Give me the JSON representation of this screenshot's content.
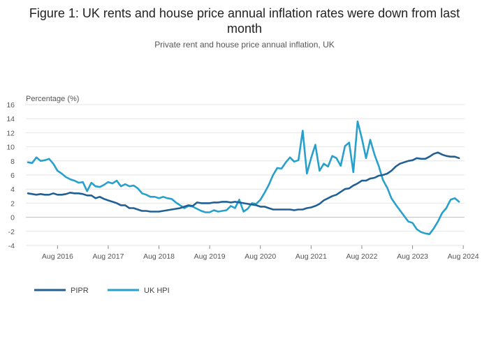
{
  "chart_data": {
    "type": "line",
    "title": "Figure 1: UK rents and house price annual inflation rates were down from last month",
    "subtitle": "Private rent and house price annual inflation, UK",
    "ylabel": "Percentage (%)",
    "ylim": [
      -4,
      16
    ],
    "yticks": [
      16,
      14,
      12,
      10,
      8,
      6,
      4,
      2,
      0,
      -2,
      -4
    ],
    "xticks": [
      "Aug 2016",
      "Aug 2017",
      "Aug 2018",
      "Aug 2019",
      "Aug 2020",
      "Aug 2021",
      "Aug 2022",
      "Aug 2023",
      "Aug 2024"
    ],
    "x_start": "2016-01",
    "grid": true,
    "legend_position": "bottom-left",
    "series": [
      {
        "name": "PIPR",
        "color": "#206095",
        "values": [
          3.4,
          3.3,
          3.2,
          3.3,
          3.2,
          3.2,
          3.4,
          3.2,
          3.2,
          3.3,
          3.5,
          3.4,
          3.4,
          3.3,
          3.1,
          3.1,
          2.7,
          2.9,
          2.6,
          2.4,
          2.2,
          2.0,
          1.7,
          1.7,
          1.3,
          1.3,
          1.1,
          0.9,
          0.9,
          0.8,
          0.8,
          0.8,
          0.9,
          1.0,
          1.1,
          1.2,
          1.3,
          1.5,
          1.7,
          1.6,
          2.1,
          2.0,
          2.0,
          2.0,
          2.1,
          2.1,
          2.2,
          2.2,
          2.1,
          2.2,
          2.1,
          2.0,
          1.9,
          1.8,
          1.7,
          1.5,
          1.5,
          1.3,
          1.1,
          1.1,
          1.1,
          1.1,
          1.1,
          1.0,
          1.1,
          1.1,
          1.3,
          1.4,
          1.6,
          1.9,
          2.4,
          2.7,
          3.0,
          3.2,
          3.6,
          4.0,
          4.1,
          4.5,
          4.8,
          5.2,
          5.2,
          5.5,
          5.6,
          5.9,
          6.0,
          6.2,
          6.6,
          7.2,
          7.6,
          7.8,
          8.0,
          8.1,
          8.4,
          8.3,
          8.3,
          8.6,
          9.0,
          9.2,
          8.9,
          8.7,
          8.6,
          8.6,
          8.4
        ]
      },
      {
        "name": "UK HPI",
        "color": "#27a0cc",
        "values": [
          7.8,
          7.7,
          8.5,
          8.0,
          8.1,
          8.3,
          7.6,
          6.6,
          6.2,
          5.7,
          5.4,
          5.2,
          4.9,
          5.0,
          3.7,
          4.9,
          4.4,
          4.3,
          4.6,
          5.0,
          4.8,
          5.2,
          4.4,
          4.7,
          4.4,
          4.5,
          4.1,
          3.4,
          3.2,
          2.9,
          2.9,
          2.7,
          2.9,
          2.7,
          2.6,
          2.1,
          1.7,
          1.3,
          1.6,
          1.5,
          1.2,
          0.9,
          0.7,
          0.7,
          1.0,
          0.8,
          0.9,
          1.0,
          1.6,
          1.3,
          2.5,
          0.8,
          1.2,
          2.0,
          1.9,
          2.5,
          3.5,
          4.6,
          6.0,
          7.0,
          6.9,
          7.8,
          8.5,
          7.9,
          8.1,
          12.3,
          6.2,
          8.4,
          10.3,
          6.6,
          7.6,
          7.2,
          8.7,
          8.4,
          7.3,
          10.1,
          10.6,
          6.4,
          13.6,
          11.2,
          8.4,
          11.0,
          8.9,
          7.3,
          5.3,
          4.2,
          2.7,
          1.8,
          1.0,
          0.2,
          -0.6,
          -0.8,
          -1.7,
          -2.1,
          -2.3,
          -2.4,
          -1.6,
          -0.6,
          0.6,
          1.3,
          2.5,
          2.7,
          2.2
        ]
      }
    ]
  }
}
